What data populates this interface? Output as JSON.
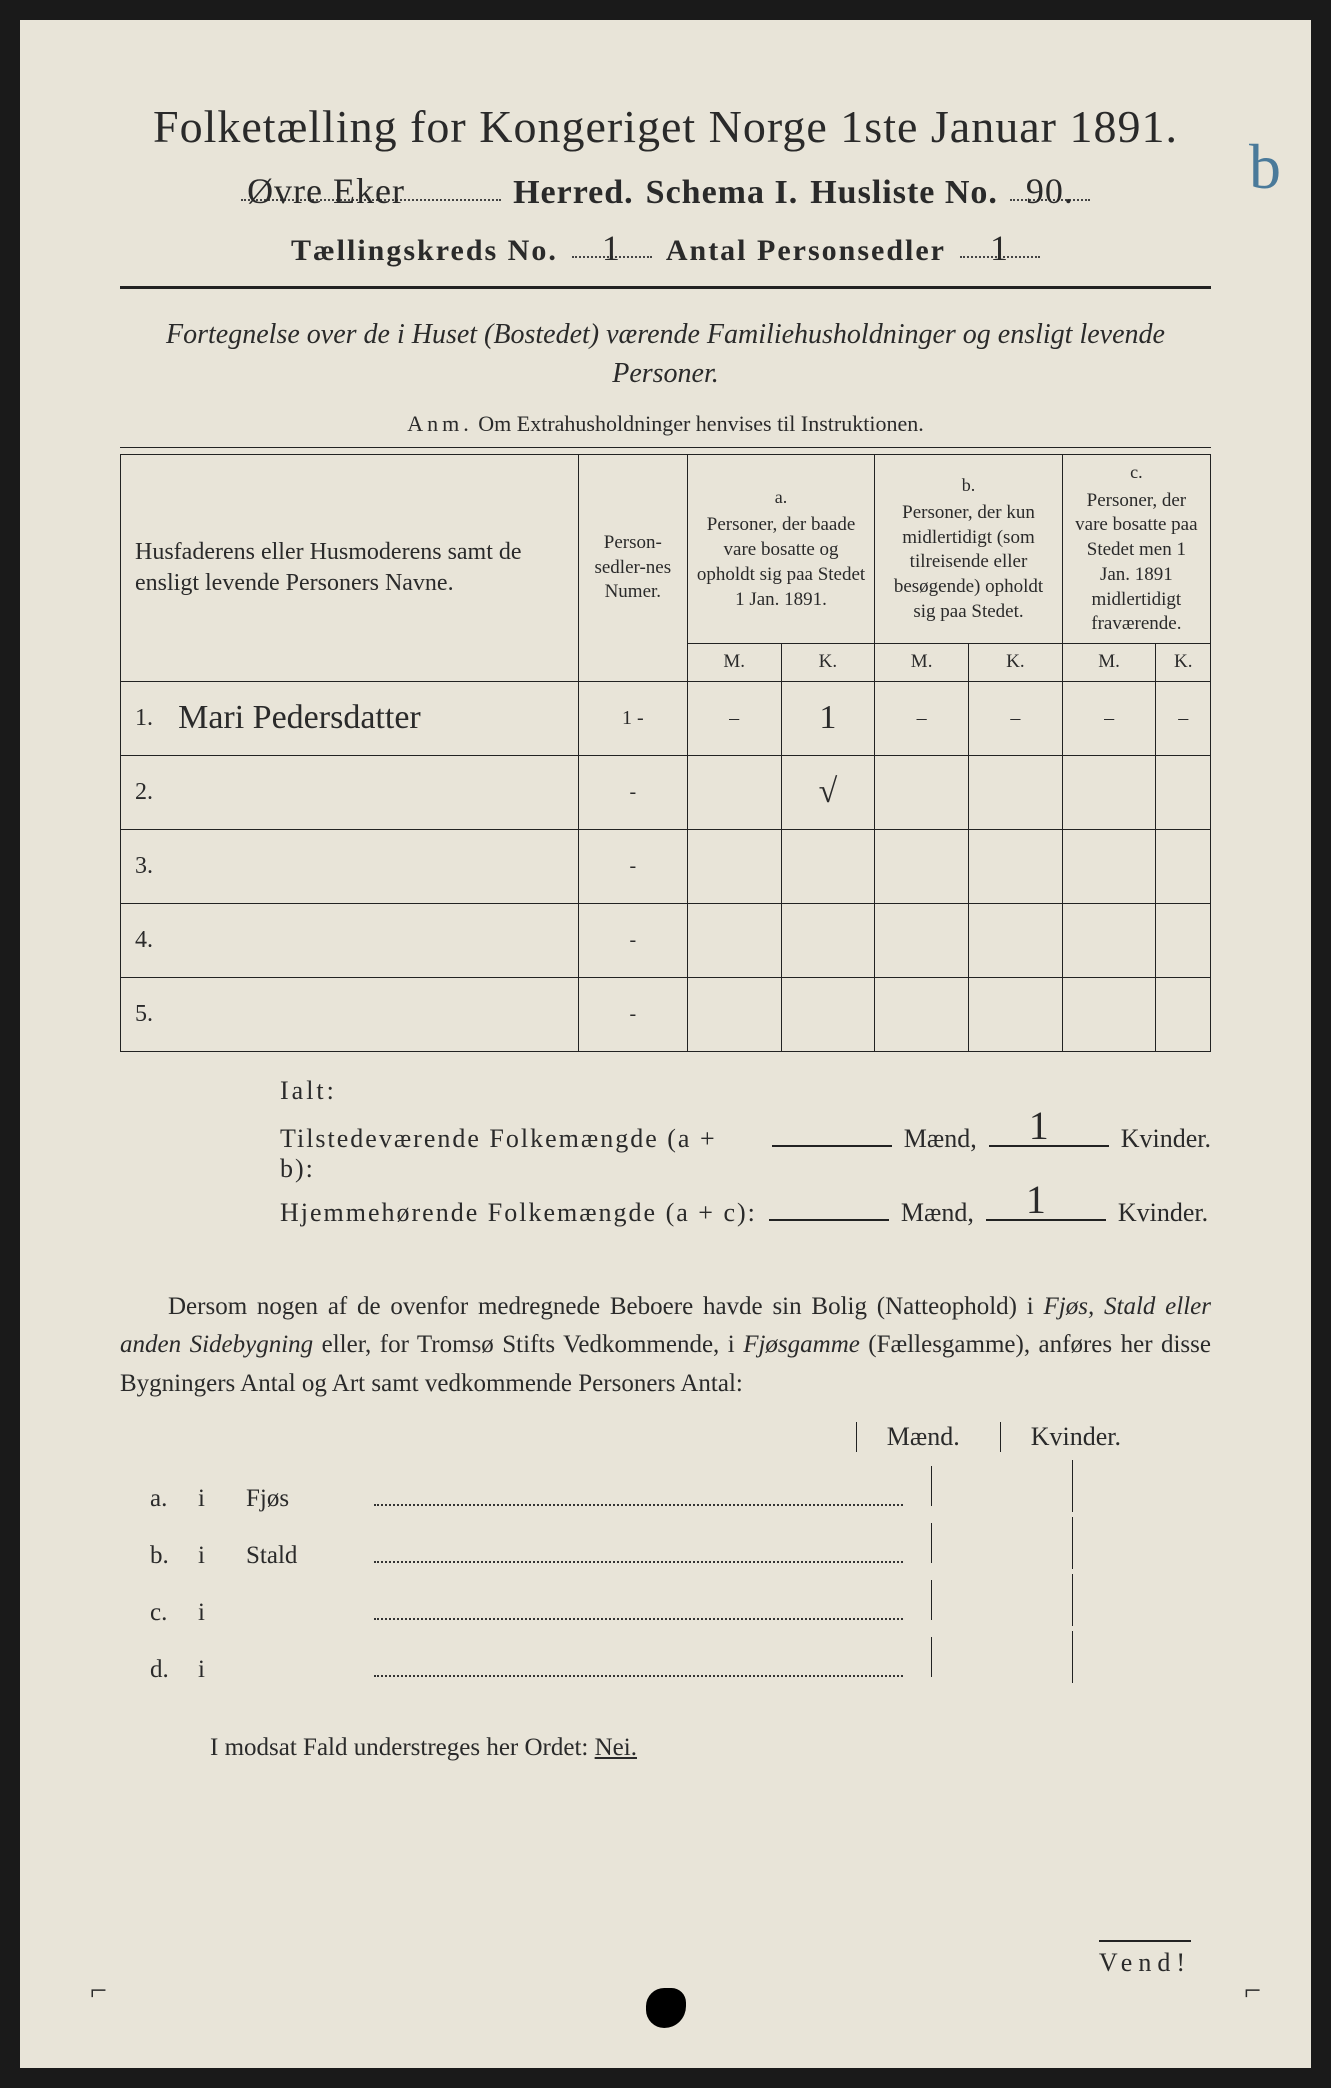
{
  "title": "Folketælling for Kongeriget Norge 1ste Januar 1891.",
  "herred_hw": "Øvre Eker",
  "line2": {
    "herred": "Herred.",
    "schema": "Schema I.",
    "husliste": "Husliste No.",
    "husliste_hw": "90."
  },
  "annot_b": "b",
  "line3": {
    "kreds": "Tællingskreds No.",
    "kreds_hw": "1",
    "antal": "Antal Personsedler",
    "antal_hw": "1"
  },
  "subtitle": "Fortegnelse over de i Huset (Bostedet) værende Familiehusholdninger og ensligt levende Personer.",
  "anm": {
    "label": "Anm.",
    "text": "Om Extrahusholdninger henvises til Instruktionen."
  },
  "table": {
    "col_name": "Husfaderens eller Husmoderens samt de ensligt levende Personers Navne.",
    "col_num": "Person-sedler-nes Numer.",
    "col_a": "Personer, der baade vare bosatte og opholdt sig paa Stedet 1 Jan. 1891.",
    "col_b": "Personer, der kun midlertidigt (som tilreisende eller besøgende) opholdt sig paa Stedet.",
    "col_c": "Personer, der vare bosatte paa Stedet men 1 Jan. 1891 midlertidigt fraværende.",
    "mk_m": "M.",
    "mk_k": "K.",
    "rows": [
      {
        "n": "1.",
        "name": "Mari Pedersdatter",
        "num": "1 -",
        "a_m": "–",
        "a_k": "1",
        "b_m": "–",
        "b_k": "–",
        "c_m": "–",
        "c_k": "–"
      },
      {
        "n": "2.",
        "name": "",
        "num": "-",
        "a_m": "",
        "a_k": "√",
        "b_m": "",
        "b_k": "",
        "c_m": "",
        "c_k": ""
      },
      {
        "n": "3.",
        "name": "",
        "num": "-",
        "a_m": "",
        "a_k": "",
        "b_m": "",
        "b_k": "",
        "c_m": "",
        "c_k": ""
      },
      {
        "n": "4.",
        "name": "",
        "num": "-",
        "a_m": "",
        "a_k": "",
        "b_m": "",
        "b_k": "",
        "c_m": "",
        "c_k": ""
      },
      {
        "n": "5.",
        "name": "",
        "num": "-",
        "a_m": "",
        "a_k": "",
        "b_m": "",
        "b_k": "",
        "c_m": "",
        "c_k": ""
      }
    ]
  },
  "ialt": {
    "title": "Ialt:",
    "line1_lbl": "Tilstedeværende Folkemængde (a + b):",
    "line2_lbl": "Hjemmehørende Folkemængde (a + c):",
    "maend": "Mænd,",
    "kvinder": "Kvinder.",
    "m1": "",
    "k1": "1",
    "m2": "",
    "k2": "1"
  },
  "para": {
    "t1": "Dersom nogen af de ovenfor medregnede Beboere havde sin Bolig (Natteophold) i ",
    "i1": "Fjøs, Stald eller anden Sidebygning",
    "t2": " eller, for Tromsø Stifts Vedkommende, i ",
    "i2": "Fjøsgamme",
    "t3": " (Fællesgamme), anføres her disse Bygningers Antal og Art samt vedkommende Personers Antal:"
  },
  "mk_header": {
    "m": "Mænd.",
    "k": "Kvinder."
  },
  "abcd": [
    {
      "lead": "a.",
      "label": "Fjøs"
    },
    {
      "lead": "b.",
      "label": "Stald"
    },
    {
      "lead": "c.",
      "label": ""
    },
    {
      "lead": "d.",
      "label": ""
    }
  ],
  "abcd_i": "i",
  "modsat": {
    "pre": "I modsat Fald understreges her Ordet: ",
    "nei": "Nei."
  },
  "vend": "Vend!"
}
